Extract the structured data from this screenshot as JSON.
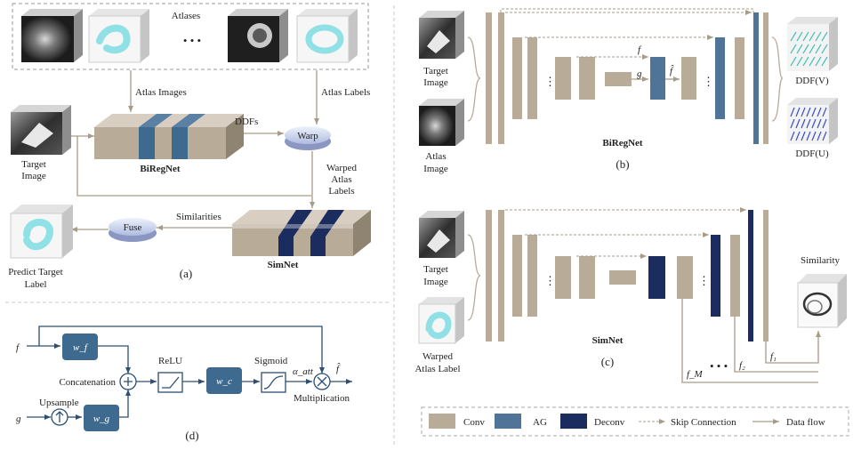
{
  "panel_a": {
    "atlases_title": "Atlases",
    "dots": "• • •",
    "atlas_images_label": "Atlas Images",
    "atlas_labels_label": "Atlas Labels",
    "target_image_label": [
      "Target",
      "Image"
    ],
    "biregnet_label": "BiRegNet",
    "ddfs_label": "DDFs",
    "warp_label": "Warp",
    "warped_atlas_labels": [
      "Warped",
      "Atlas",
      "Labels"
    ],
    "similarities_label": "Similarities",
    "fuse_label": "Fuse",
    "simnet_label": "SimNet",
    "predict_label": [
      "Predict Target",
      "Label"
    ],
    "caption": "(a)"
  },
  "panel_b": {
    "target_image_label": [
      "Target",
      "Image"
    ],
    "atlas_image_label": [
      "Atlas",
      "Image"
    ],
    "f_label": "f",
    "g_label": "g",
    "fhat_label": "f̂",
    "network_name": "BiRegNet",
    "ddf_v": "DDF(V)",
    "ddf_u": "DDF(U)",
    "caption": "(b)"
  },
  "panel_c": {
    "target_image_label": [
      "Target",
      "Image"
    ],
    "warped_label": [
      "Warped",
      "Atlas Label"
    ],
    "network_name": "SimNet",
    "similarity_label": "Similarity",
    "f1_label": "f₁",
    "f2_label": "f₂",
    "fm_label": "f_M",
    "caption": "(c)"
  },
  "panel_d": {
    "f_label": "f",
    "g_label": "g",
    "wf_label": "w_f",
    "wg_label": "w_g",
    "wc_label": "w_c",
    "relu_label": "ReLU",
    "sigmoid_label": "Sigmoid",
    "att_label": "α_att",
    "fhat_label": "f̂",
    "concat_label": "Concatenation",
    "upsample_label": "Upsample",
    "mult_label": "Multiplication",
    "caption": "(d)"
  },
  "legend": {
    "conv": "Conv",
    "ag": "AG",
    "deconv": "Deconv",
    "skip": "Skip Connection",
    "flow": "Data flow"
  },
  "colors": {
    "conv": "#b8ab98",
    "ag": "#4f7497",
    "deconv": "#1b2c5e",
    "block_d": "#3f6a90",
    "arrow": "#b8ab98",
    "cyan": "#8fe1e6"
  }
}
